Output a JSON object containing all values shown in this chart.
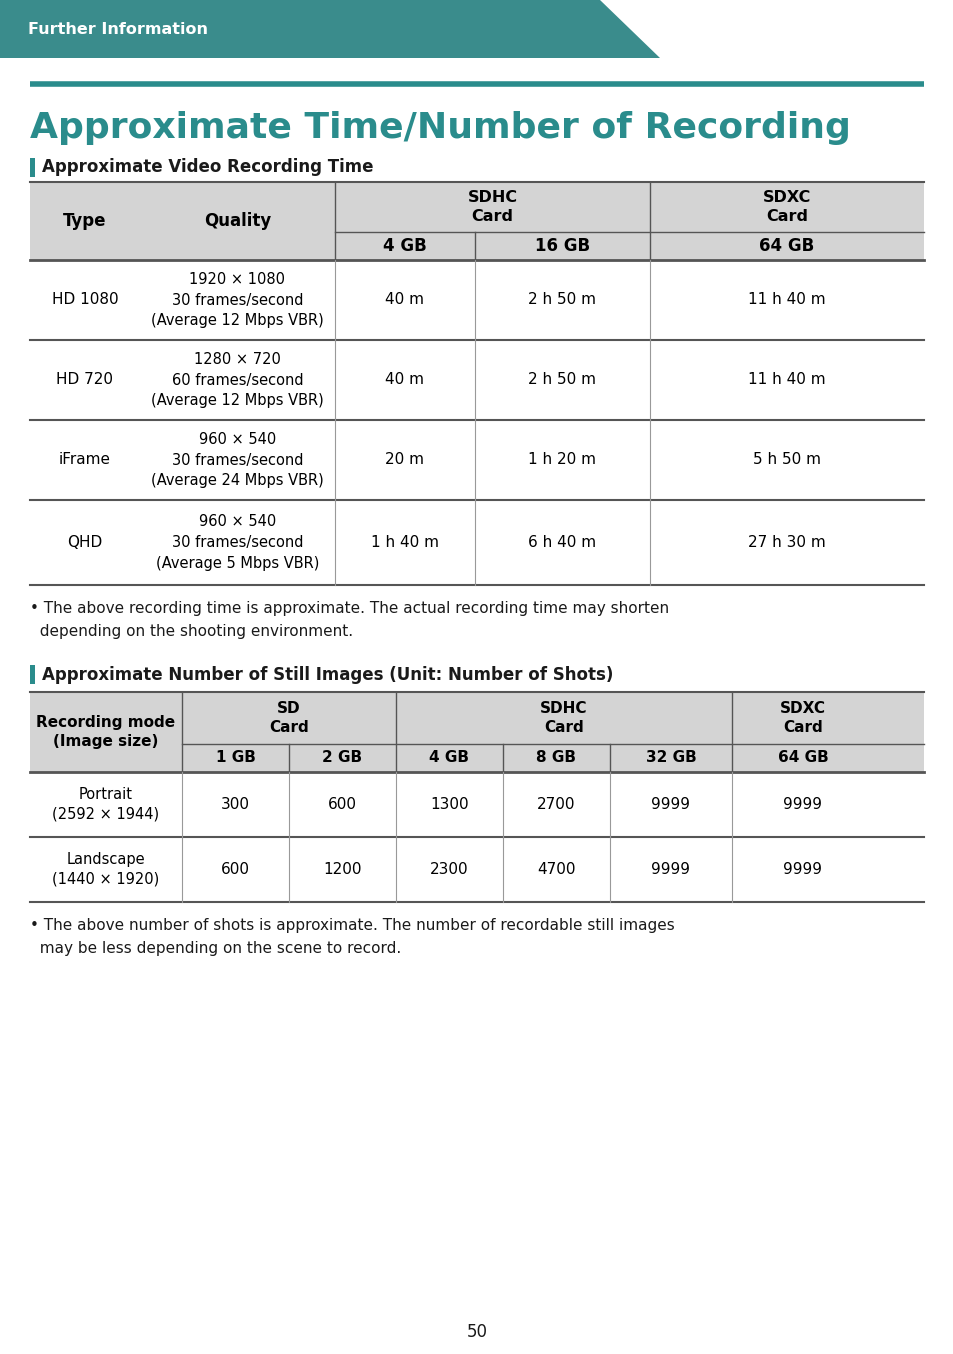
{
  "page_bg": "#ffffff",
  "header_bg": "#3a8c8c",
  "header_text": "Further Information",
  "header_text_color": "#ffffff",
  "teal_color": "#2a8c8c",
  "dark_text": "#1a1a1a",
  "table_header_bg": "#d4d4d4",
  "table_border": "#555555",
  "table_border_light": "#999999",
  "main_title": "Approximate Time/Number of Recording",
  "section1_title": "Approximate Video Recording Time",
  "section2_title": "Approximate Number of Still Images (Unit: Number of Shots)",
  "table1_rows": [
    [
      "HD 1080",
      "1920 × 1080\n30 frames/second\n(Average 12 Mbps VBR)",
      "40 m",
      "2 h 50 m",
      "11 h 40 m"
    ],
    [
      "HD 720",
      "1280 × 720\n60 frames/second\n(Average 12 Mbps VBR)",
      "40 m",
      "2 h 50 m",
      "11 h 40 m"
    ],
    [
      "iFrame",
      "960 × 540\n30 frames/second\n(Average 24 Mbps VBR)",
      "20 m",
      "1 h 20 m",
      "5 h 50 m"
    ],
    [
      "QHD",
      "960 × 540\n30 frames/second\n(Average 5 Mbps VBR)",
      "1 h 40 m",
      "6 h 40 m",
      "27 h 30 m"
    ]
  ],
  "table2_rows": [
    [
      "Portrait\n(2592 × 1944)",
      "300",
      "600",
      "1300",
      "2700",
      "9999",
      "9999"
    ],
    [
      "Landscape\n(1440 × 1920)",
      "600",
      "1200",
      "2300",
      "4700",
      "9999",
      "9999"
    ]
  ],
  "note1": "• The above recording time is approximate. The actual recording time may shorten\n  depending on the shooting environment.",
  "note2": "• The above number of shots is approximate. The number of recordable still images\n  may be less depending on the scene to record.",
  "page_number": "50"
}
